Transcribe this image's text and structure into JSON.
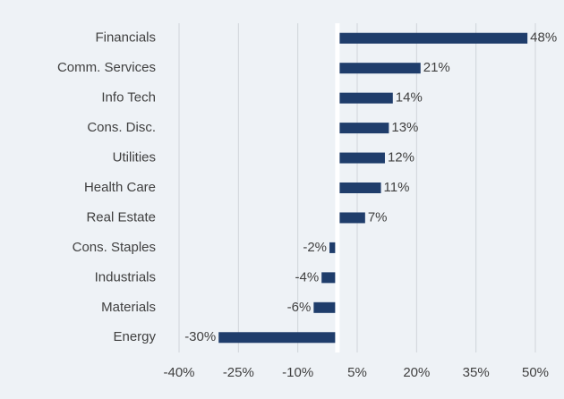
{
  "chart_data": {
    "type": "bar",
    "orientation": "horizontal",
    "categories": [
      "Financials",
      "Comm. Services",
      "Info Tech",
      "Cons. Disc.",
      "Utilities",
      "Health Care",
      "Real Estate",
      "Cons. Staples",
      "Industrials",
      "Materials",
      "Energy"
    ],
    "values": [
      48,
      21,
      14,
      13,
      12,
      11,
      7,
      -2,
      -4,
      -6,
      -30
    ],
    "value_labels": [
      "48%",
      "21%",
      "14%",
      "13%",
      "12%",
      "11%",
      "7%",
      "-2%",
      "-4%",
      "-6%",
      "-30%"
    ],
    "color": "#1f3d6b",
    "xlim": [
      -40,
      50
    ],
    "xticks": [
      {
        "value": -40,
        "label": "-40%"
      },
      {
        "value": -25,
        "label": "-25%"
      },
      {
        "value": -10,
        "label": "-10%"
      },
      {
        "value": 5,
        "label": "5%"
      },
      {
        "value": 20,
        "label": "20%"
      },
      {
        "value": 35,
        "label": "35%"
      },
      {
        "value": 50,
        "label": "50%"
      }
    ],
    "grid": true
  }
}
